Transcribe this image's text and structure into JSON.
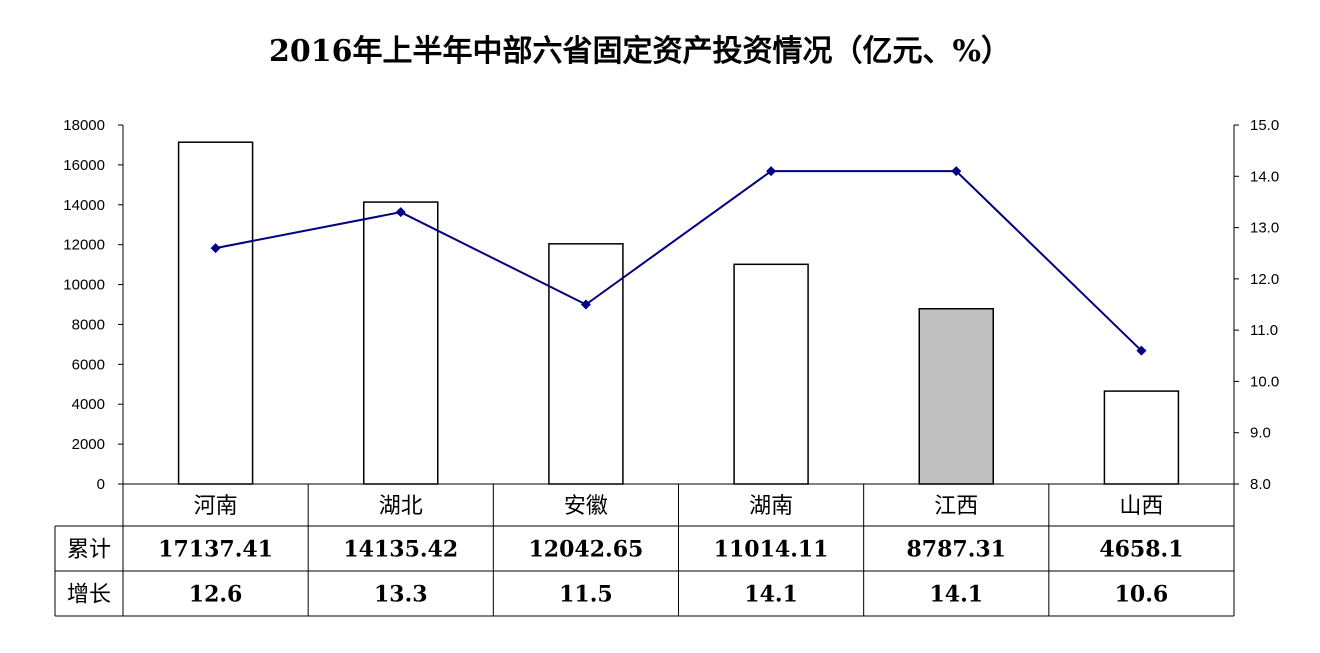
{
  "chart_data": {
    "type": "bar",
    "title": "2016年上半年中部六省固定资产投资情况（亿元、%）",
    "categories": [
      "河南",
      "湖北",
      "安徽",
      "湖南",
      "江西",
      "山西"
    ],
    "series": [
      {
        "values": [
          17137.41,
          14135.42,
          12042.65,
          11014.11,
          8787.31,
          4658.1
        ],
        "axis": "left",
        "kind": "bar"
      },
      {
        "values": [
          12.6,
          13.3,
          11.5,
          14.1,
          14.1,
          10.6
        ],
        "axis": "right",
        "kind": "line"
      }
    ],
    "highlight_index": 4,
    "y_left": {
      "min": 0,
      "max": 18000,
      "step": 2000,
      "ticks": [
        "0",
        "2000",
        "4000",
        "6000",
        "8000",
        "10000",
        "12000",
        "14000",
        "16000",
        "18000"
      ]
    },
    "y_right": {
      "min": 8.0,
      "max": 15.0,
      "step": 1.0,
      "ticks": [
        "8.0",
        "9.0",
        "10.0",
        "11.0",
        "12.0",
        "13.0",
        "14.0",
        "15.0"
      ]
    },
    "table": {
      "row_headers": [
        "累计",
        "增长"
      ],
      "rows": [
        [
          "17137.41",
          "14135.42",
          "12042.65",
          "11014.11",
          "8787.31",
          "4658.1"
        ],
        [
          "12.6",
          "13.3",
          "11.5",
          "14.1",
          "14.1",
          "10.6"
        ]
      ]
    },
    "grid": false,
    "legend": "none",
    "colors": {
      "bar_fill": "#ffffff",
      "bar_highlight_fill": "#c0c0c0",
      "bar_stroke": "#000000",
      "line": "#000080",
      "marker": "#000080"
    }
  }
}
